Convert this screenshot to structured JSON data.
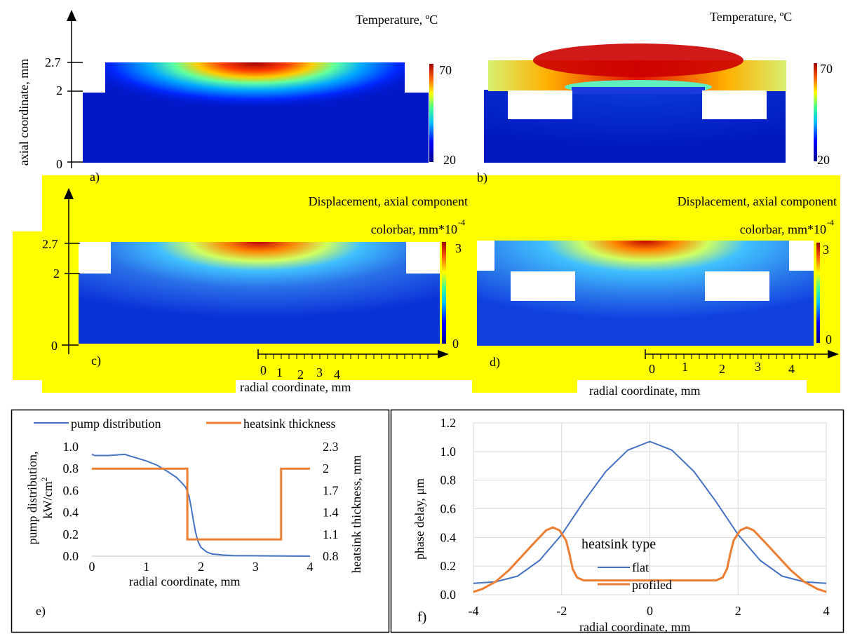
{
  "top_panels": {
    "axial_label": "axial coordinate, mm",
    "radial_label": "radial coordinate, mm",
    "temperature_title": "Temperature, ºC",
    "displacement_title": "Displacement, axial component",
    "displacement_colorbar_label": "colorbar, mm*10",
    "displacement_exponent": "-4",
    "temp_colorbar_ticks": [
      "70",
      "20"
    ],
    "disp_colorbar_ticks": [
      "3",
      "0"
    ],
    "axial_ticks": [
      "2.7",
      "2",
      "0"
    ],
    "radial_ticks": [
      "0",
      "1",
      "2",
      "3",
      "4"
    ],
    "panel_labels": [
      "a)",
      "b)",
      "c)",
      "d)"
    ],
    "colors": {
      "highlight": "#ffff00",
      "heat_hot": "#b40000",
      "heat_cold": "#00008f"
    }
  },
  "chart_data": [
    {
      "type": "line",
      "panel": "e)",
      "xlabel": "radial coordinate, mm",
      "ylabel": "pump distribution, kW/cm²",
      "ylabel_lines": [
        "pump distribution,",
        "kW/cm"
      ],
      "y2label": "heatsink thickness, mm",
      "xlim": [
        0,
        4
      ],
      "ylim": [
        0,
        1
      ],
      "y2lim": [
        0.8,
        2.3
      ],
      "xticks": [
        "0",
        "1",
        "2",
        "3",
        "4"
      ],
      "yticks": [
        "0.0",
        "0.2",
        "0.4",
        "0.6",
        "0.8",
        "1.0"
      ],
      "y2ticks": [
        "0.8",
        "1.1",
        "1.4",
        "1.7",
        "2",
        "2.3"
      ],
      "legend": "top",
      "series": [
        {
          "name": "pump distribution",
          "axis": "left",
          "color": "#4472c4",
          "x": [
            0,
            0.05,
            0.3,
            0.6,
            0.8,
            1.0,
            1.2,
            1.4,
            1.55,
            1.65,
            1.72,
            1.78,
            1.82,
            1.86,
            1.9,
            1.95,
            2.0,
            2.1,
            2.2,
            2.4,
            2.6,
            3.0,
            3.5,
            4.0
          ],
          "y": [
            0.93,
            0.92,
            0.92,
            0.93,
            0.9,
            0.87,
            0.83,
            0.77,
            0.72,
            0.67,
            0.63,
            0.55,
            0.45,
            0.33,
            0.22,
            0.13,
            0.08,
            0.04,
            0.02,
            0.01,
            0.005,
            0.003,
            0.001,
            0.0
          ]
        },
        {
          "name": "heatsink thickness",
          "axis": "right",
          "color": "#ed7d31",
          "x": [
            0,
            1.75,
            1.75,
            3.47,
            3.47,
            4.0
          ],
          "y": [
            2.0,
            2.0,
            1.03,
            1.03,
            2.0,
            2.0
          ]
        }
      ]
    },
    {
      "type": "line",
      "panel": "f)",
      "xlabel": "radial coordinate, mm",
      "ylabel": "phase delay, μm",
      "xlim": [
        -4,
        4
      ],
      "ylim": [
        0,
        1.2
      ],
      "xticks": [
        "-4",
        "-2",
        "0",
        "2",
        "4"
      ],
      "yticks": [
        "0.0",
        "0.2",
        "0.4",
        "0.6",
        "0.8",
        "1.0",
        "1.2"
      ],
      "grid": true,
      "legend_title": "heatsink type",
      "legend": "center",
      "series": [
        {
          "name": "flat",
          "color": "#4472c4",
          "x": [
            -4,
            -3.5,
            -3,
            -2.5,
            -2,
            -1.5,
            -1,
            -0.5,
            0,
            0.5,
            1,
            1.5,
            2,
            2.5,
            3,
            3.5,
            4
          ],
          "y": [
            0.08,
            0.09,
            0.13,
            0.24,
            0.42,
            0.65,
            0.86,
            1.01,
            1.07,
            1.01,
            0.86,
            0.65,
            0.42,
            0.24,
            0.13,
            0.09,
            0.08
          ]
        },
        {
          "name": "profiled",
          "color": "#ed7d31",
          "x": [
            -4,
            -3.8,
            -3.5,
            -3.2,
            -2.9,
            -2.6,
            -2.35,
            -2.2,
            -2.05,
            -1.9,
            -1.82,
            -1.75,
            -1.65,
            -1.5,
            -1.0,
            0,
            1.0,
            1.5,
            1.65,
            1.75,
            1.82,
            1.9,
            2.05,
            2.2,
            2.35,
            2.6,
            2.9,
            3.2,
            3.5,
            3.8,
            4
          ],
          "y": [
            0.02,
            0.04,
            0.09,
            0.17,
            0.27,
            0.37,
            0.45,
            0.47,
            0.45,
            0.38,
            0.28,
            0.18,
            0.12,
            0.1,
            0.1,
            0.1,
            0.1,
            0.1,
            0.12,
            0.18,
            0.28,
            0.38,
            0.45,
            0.47,
            0.45,
            0.37,
            0.27,
            0.17,
            0.09,
            0.04,
            0.02
          ]
        }
      ]
    }
  ]
}
